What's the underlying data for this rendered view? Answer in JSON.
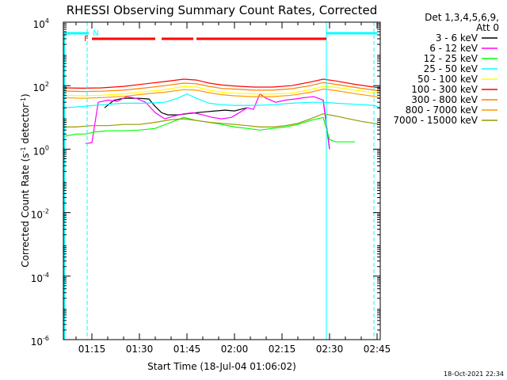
{
  "chart_data": {
    "type": "line",
    "title": "RHESSI Observing Summary Count Rates, Corrected",
    "xlabel": "Start Time (18-Jul-04 01:06:02)",
    "ylabel_main": "Corrected Count Rate (s",
    "ylabel_sup1": "-1",
    "ylabel_mid": " detector",
    "ylabel_sup2": "-1",
    "ylabel_end": ")",
    "y_scale": "log",
    "ylim": [
      1e-06,
      10000.0
    ],
    "xlim": [
      "01:06",
      "02:46"
    ],
    "xlim_min": [
      66,
      166
    ],
    "x_ticks": [
      {
        "t": 75,
        "label": "01:15"
      },
      {
        "t": 90,
        "label": "01:30"
      },
      {
        "t": 105,
        "label": "01:45"
      },
      {
        "t": 120,
        "label": "02:00"
      },
      {
        "t": 135,
        "label": "02:15"
      },
      {
        "t": 150,
        "label": "02:30"
      },
      {
        "t": 165,
        "label": "02:45"
      }
    ],
    "y_ticks": [
      {
        "exp": 4,
        "base": "10",
        "sup": "4"
      },
      {
        "exp": 2,
        "base": "10",
        "sup": "2"
      },
      {
        "exp": 0,
        "base": "10",
        "sup": "0"
      },
      {
        "exp": -2,
        "base": "10",
        "sup": "-2"
      },
      {
        "exp": -4,
        "base": "10",
        "sup": "-4"
      },
      {
        "exp": -6,
        "base": "10",
        "sup": "-6"
      }
    ],
    "legend_header": [
      "Det 1,3,4,5,6,9,",
      "Att 0"
    ],
    "legend_position": "right",
    "series": [
      {
        "name": "3 - 6 keV",
        "color": "#000000",
        "x": [
          75,
          79,
          82,
          85,
          88,
          90,
          93,
          95,
          97,
          99,
          102,
          105,
          108,
          111,
          114,
          117,
          120,
          122,
          124,
          128,
          131,
          134,
          137,
          140,
          143,
          146,
          148,
          150
        ],
        "y": [
          null,
          20,
          35,
          40,
          40,
          40,
          38,
          22,
          14,
          12,
          12,
          13,
          14,
          15,
          16,
          17,
          16,
          18,
          20,
          null,
          null,
          null,
          null,
          null,
          null,
          null,
          35,
          1
        ]
      },
      {
        "name": "6 - 12 keV",
        "color": "#ff00ff",
        "x": [
          73,
          75,
          77,
          80,
          83,
          86,
          89,
          92,
          95,
          98,
          101,
          104,
          107,
          110,
          113,
          116,
          119,
          122,
          124,
          126,
          128,
          130,
          133,
          136,
          139,
          142,
          145,
          148,
          150
        ],
        "y": [
          1.5,
          1.6,
          30,
          35,
          32,
          45,
          40,
          30,
          14,
          9,
          11,
          13,
          14,
          12,
          10,
          9,
          10,
          15,
          20,
          18,
          55,
          40,
          30,
          35,
          38,
          42,
          45,
          35,
          1
        ]
      },
      {
        "name": "12 - 25 keV",
        "color": "#00ff00",
        "x": [
          66,
          70,
          73,
          76,
          80,
          85,
          90,
          95,
          100,
          104,
          108,
          112,
          116,
          120,
          124,
          128,
          132,
          136,
          140,
          144,
          148,
          150,
          152,
          158
        ],
        "y": [
          2.5,
          3,
          3,
          3.5,
          3.8,
          3.8,
          4,
          4.5,
          7,
          10,
          8,
          7,
          6,
          5,
          4.5,
          4,
          4.5,
          5,
          6,
          8,
          10,
          2,
          1.7,
          1.7
        ]
      },
      {
        "name": "25 - 50 keV",
        "color": "#00ffff",
        "x": [
          66,
          72,
          78,
          85,
          92,
          98,
          102,
          105,
          108,
          112,
          116,
          120,
          126,
          132,
          138,
          144,
          148,
          152,
          158,
          164,
          166
        ],
        "y": [
          20,
          22,
          25,
          28,
          28,
          30,
          40,
          55,
          40,
          28,
          25,
          24,
          24,
          25,
          28,
          30,
          30,
          28,
          26,
          24,
          20
        ]
      },
      {
        "name": "50 - 100 keV",
        "color": "#ffff00",
        "x": [
          66,
          72,
          78,
          85,
          92,
          98,
          104,
          108,
          112,
          116,
          120,
          126,
          132,
          138,
          144,
          148,
          152,
          158,
          164,
          166
        ],
        "y": [
          50,
          48,
          50,
          55,
          65,
          75,
          95,
          90,
          72,
          62,
          58,
          55,
          55,
          58,
          75,
          95,
          88,
          72,
          60,
          58
        ]
      },
      {
        "name": "100 - 300 keV",
        "color": "#ff0000",
        "x": [
          66,
          72,
          78,
          85,
          92,
          98,
          104,
          108,
          112,
          116,
          120,
          126,
          132,
          138,
          144,
          148,
          152,
          158,
          164,
          166
        ],
        "y": [
          85,
          83,
          85,
          95,
          115,
          135,
          160,
          150,
          120,
          105,
          98,
          90,
          90,
          100,
          130,
          160,
          140,
          110,
          90,
          85
        ]
      },
      {
        "name": "300 - 800 keV",
        "color": "#ff8000",
        "x": [
          66,
          72,
          78,
          85,
          92,
          98,
          104,
          108,
          112,
          116,
          120,
          126,
          132,
          138,
          144,
          148,
          152,
          158,
          164,
          166
        ],
        "y": [
          68,
          65,
          67,
          72,
          85,
          100,
          120,
          115,
          95,
          82,
          78,
          72,
          72,
          80,
          100,
          125,
          110,
          88,
          72,
          68
        ]
      },
      {
        "name": "800 - 7000 keV",
        "color": "#ff9900",
        "x": [
          66,
          72,
          78,
          85,
          92,
          98,
          104,
          108,
          112,
          116,
          120,
          126,
          132,
          138,
          144,
          148,
          152,
          158,
          164,
          166
        ],
        "y": [
          42,
          40,
          42,
          46,
          55,
          62,
          75,
          72,
          60,
          52,
          48,
          45,
          45,
          50,
          62,
          78,
          70,
          56,
          46,
          42
        ]
      },
      {
        "name": "7000 - 15000 keV",
        "color": "#999900",
        "x": [
          66,
          70,
          75,
          80,
          85,
          90,
          95,
          100,
          104,
          108,
          112,
          116,
          120,
          124,
          128,
          132,
          136,
          140,
          144,
          148,
          152,
          156,
          160,
          164,
          166
        ],
        "y": [
          5,
          5,
          5.5,
          5.5,
          6,
          6,
          7,
          8.5,
          9,
          8,
          7,
          6.5,
          6,
          5.5,
          5,
          5,
          5.5,
          6.5,
          9,
          13,
          11,
          9,
          7.5,
          6.5,
          6
        ]
      }
    ],
    "flags": [
      {
        "label": "N",
        "color": "#00ffff",
        "segments": [
          [
            66,
            74
          ],
          [
            149,
            165
          ]
        ]
      },
      {
        "label": "F",
        "color": "#ff0000",
        "segments": [
          [
            75,
            95
          ],
          [
            97,
            107
          ],
          [
            108,
            149
          ]
        ]
      }
    ],
    "vertical_markers": [
      {
        "t": 73.5,
        "color": "#00ffff",
        "style": "dashed"
      },
      {
        "t": 149,
        "color": "#00ffff",
        "style": "solid"
      },
      {
        "t": 164,
        "color": "#00ffff",
        "style": "dashed"
      }
    ],
    "edge_markers": [
      {
        "t": 66,
        "color": "#00ffff"
      }
    ]
  },
  "footer_date": "18-Oct-2021 22:34"
}
